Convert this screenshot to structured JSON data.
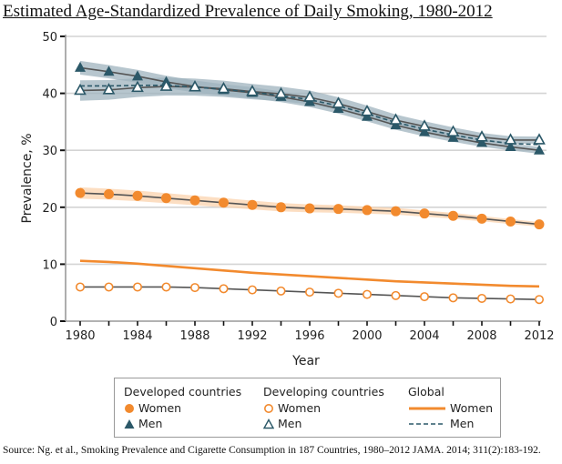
{
  "chart_data": {
    "type": "line",
    "title": "Estimated Age-Standardized Prevalence of Daily Smoking, 1980-2012",
    "xlabel": "Year",
    "ylabel": "Prevalence, %",
    "xlim": [
      1980,
      2012
    ],
    "ylim": [
      0,
      50
    ],
    "xticks": [
      "1980",
      "1984",
      "1988",
      "1992",
      "1996",
      "2000",
      "2004",
      "2008",
      "2012"
    ],
    "yticks": [
      "0",
      "10",
      "20",
      "30",
      "40",
      "50"
    ],
    "grid": "horizontal",
    "x": [
      1980,
      1982,
      1984,
      1986,
      1988,
      1990,
      1992,
      1994,
      1996,
      1998,
      2000,
      2002,
      2004,
      2006,
      2008,
      2010,
      2012
    ],
    "series": [
      {
        "name": "Developed countries Men",
        "color": "#2b5868",
        "marker": "filled-triangle",
        "values": [
          44.5,
          43.8,
          43.0,
          42.0,
          41.2,
          40.6,
          40.1,
          39.4,
          38.5,
          37.3,
          35.9,
          34.4,
          33.2,
          32.2,
          31.3,
          30.6,
          30.0
        ]
      },
      {
        "name": "Developing countries Men",
        "color": "#2b5868",
        "marker": "open-triangle",
        "values": [
          40.5,
          40.6,
          41.0,
          41.2,
          41.1,
          40.8,
          40.3,
          39.9,
          39.3,
          38.2,
          36.8,
          35.3,
          34.2,
          33.2,
          32.3,
          31.8,
          31.8
        ]
      },
      {
        "name": "Global Men",
        "color": "#2b5868",
        "marker": "none",
        "dash": true,
        "values": [
          41.3,
          41.3,
          41.4,
          41.4,
          41.1,
          40.7,
          40.2,
          39.6,
          38.9,
          37.8,
          36.4,
          34.9,
          33.7,
          32.7,
          31.8,
          31.2,
          31.0
        ]
      },
      {
        "name": "Developed countries Women",
        "color": "#f28a2e",
        "marker": "filled-circle",
        "values": [
          22.5,
          22.3,
          22.0,
          21.6,
          21.2,
          20.8,
          20.4,
          20.0,
          19.8,
          19.7,
          19.5,
          19.3,
          18.9,
          18.5,
          18.0,
          17.5,
          17.0
        ]
      },
      {
        "name": "Global Women",
        "color": "#f28a2e",
        "marker": "none",
        "values": [
          10.6,
          10.4,
          10.1,
          9.7,
          9.3,
          8.9,
          8.5,
          8.2,
          7.9,
          7.6,
          7.3,
          7.0,
          6.8,
          6.6,
          6.4,
          6.2,
          6.1
        ]
      },
      {
        "name": "Developing countries Women",
        "color": "#f28a2e",
        "marker": "open-circle",
        "values": [
          6.0,
          6.0,
          6.0,
          6.0,
          5.9,
          5.7,
          5.5,
          5.3,
          5.1,
          4.9,
          4.7,
          4.5,
          4.3,
          4.1,
          4.0,
          3.9,
          3.8
        ]
      }
    ],
    "legend": {
      "placement": "bottom",
      "groups": [
        {
          "title": "Developed countries",
          "items": [
            {
              "label": "Women",
              "symbol": "filled-circle"
            },
            {
              "label": "Men",
              "symbol": "filled-triangle"
            }
          ]
        },
        {
          "title": "Developing countries",
          "items": [
            {
              "label": "Women",
              "symbol": "open-circle"
            },
            {
              "label": "Men",
              "symbol": "open-triangle"
            }
          ]
        },
        {
          "title": "Global",
          "items": [
            {
              "label": "Women",
              "symbol": "solid-line"
            },
            {
              "label": "Men",
              "symbol": "dashed-line"
            }
          ]
        }
      ]
    }
  },
  "source": "Source: Ng. et al., Smoking Prevalence and Cigarette Consumption in 187 Countries, 1980–2012 JAMA. 2014; 311(2):183-192.",
  "colors": {
    "men": "#2b5868",
    "women": "#f28a2e",
    "band_men": "#9fb3bd",
    "band_women": "#fbd3ad"
  }
}
